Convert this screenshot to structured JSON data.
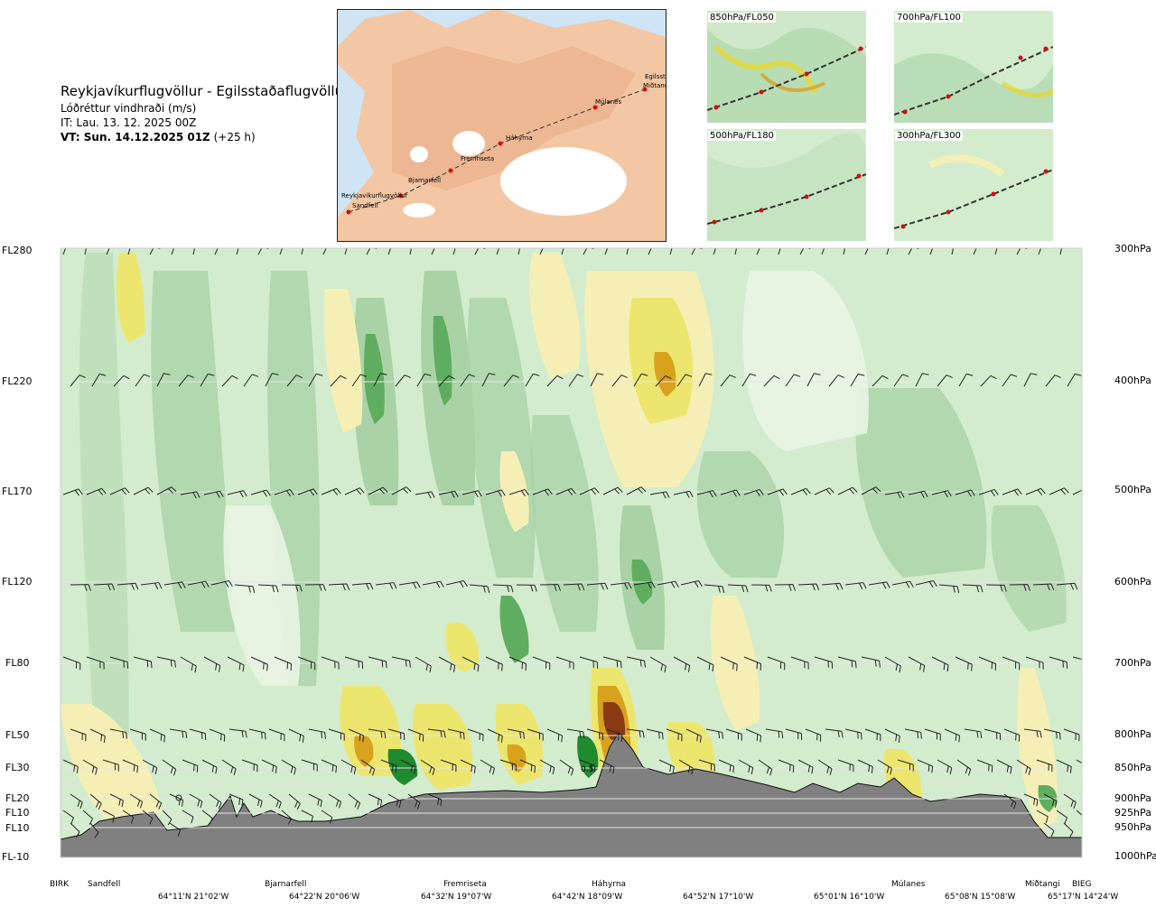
{
  "header": {
    "title": "Reykjavíkurflugvöllur - Egilsstaðaflugvöllur",
    "variable": "Lóðréttur vindhraði (m/s)",
    "it": "IT: Lau. 13. 12. 2025 00Z",
    "vt_bold": "VT: Sun. 14.12.2025 01Z",
    "vt_lead": "(+25 h)"
  },
  "map": {
    "places": [
      "Reykjavíkurflugvöllur",
      "Sandfell",
      "Bjarnarfell",
      "Fremriseta",
      "Háhyrna",
      "Múlanes",
      "Egilsstaðir",
      "Miðtangi"
    ]
  },
  "thumbnails": [
    {
      "label": "850hPa/FL050"
    },
    {
      "label": "700hPa/FL100"
    },
    {
      "label": "500hPa/FL180"
    },
    {
      "label": "300hPa/FL300"
    }
  ],
  "left_axis": [
    "FL280",
    "FL220",
    "FL170",
    "FL120",
    "FL80",
    "FL50",
    "FL30",
    "FL20",
    "FL10",
    "FL10",
    "FL-10"
  ],
  "right_axis": [
    "300hPa",
    "400hPa",
    "500hPa",
    "600hPa",
    "700hPa",
    "800hPa",
    "850hPa",
    "900hPa",
    "925hPa",
    "950hPa",
    "1000hPa"
  ],
  "x_places": [
    "BIRK",
    "Sandfell",
    "Bjarnarfell",
    "Fremriseta",
    "Háhyrna",
    "Múlanes",
    "Miðtangi",
    "BIEG"
  ],
  "x_coords": [
    "64°11'N 21°02'W",
    "64°22'N 20°06'W",
    "64°32'N 19°07'W",
    "64°42'N 18°09'W",
    "64°52'N 17°10'W",
    "65°01'N 16°10'W",
    "65°08'N 15°08'W",
    "65°17'N 14°24'W"
  ],
  "annotation": "0.5",
  "colors": {
    "bg_green": "#d3eccd",
    "green_mid": "#a9d3a6",
    "green_dark": "#5fae60",
    "green_darkest": "#1f8a2e",
    "yellow_light": "#f5efb6",
    "yellow": "#ece66f",
    "yellow_strong": "#e6d832",
    "orange": "#d9a21e",
    "brown": "#8a3a10",
    "terrain": "#808080",
    "land": "#f3c7a3",
    "ice": "#ffffff",
    "sea": "#cfe4f5"
  }
}
